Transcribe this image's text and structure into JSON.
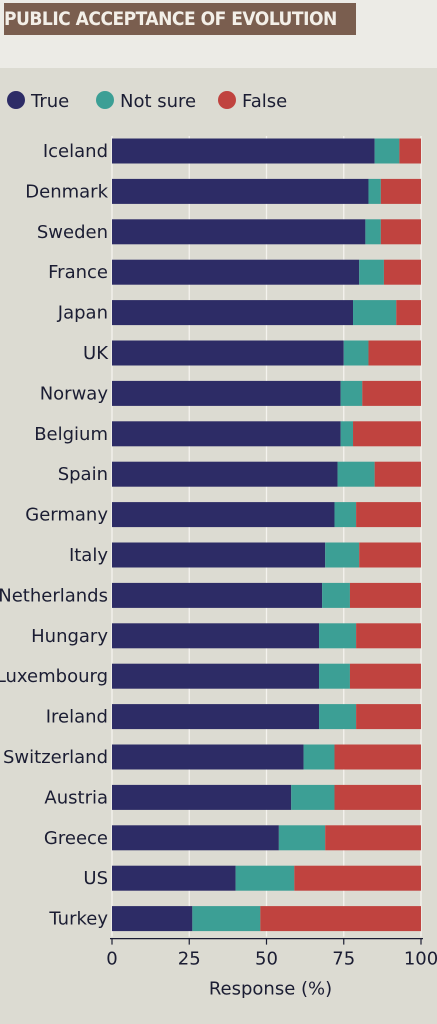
{
  "header": {
    "title": "PUBLIC ACCEPTANCE OF EVOLUTION"
  },
  "chart_data": {
    "type": "bar",
    "orientation": "horizontal",
    "stacked": true,
    "categories": [
      "Iceland",
      "Denmark",
      "Sweden",
      "France",
      "Japan",
      "UK",
      "Norway",
      "Belgium",
      "Spain",
      "Germany",
      "Italy",
      "Netherlands",
      "Hungary",
      "Luxembourg",
      "Ireland",
      "Switzerland",
      "Austria",
      "Greece",
      "US",
      "Turkey"
    ],
    "series": [
      {
        "name": "True",
        "color": "#2d2c66",
        "values": [
          85,
          83,
          82,
          80,
          78,
          75,
          74,
          74,
          73,
          72,
          69,
          68,
          67,
          67,
          67,
          62,
          58,
          54,
          40,
          26
        ]
      },
      {
        "name": "Not sure",
        "color": "#3c9f95",
        "values": [
          8,
          4,
          5,
          8,
          14,
          8,
          7,
          4,
          12,
          7,
          11,
          9,
          12,
          10,
          12,
          10,
          14,
          15,
          19,
          22
        ]
      },
      {
        "name": "False",
        "color": "#c0433f",
        "values": [
          7,
          13,
          13,
          12,
          8,
          17,
          19,
          22,
          15,
          21,
          20,
          23,
          21,
          23,
          21,
          28,
          28,
          31,
          41,
          52
        ]
      }
    ],
    "xlabel": "Response (%)",
    "xlim": [
      0,
      100
    ],
    "xticks": [
      0,
      25,
      50,
      75,
      100
    ],
    "legend_position": "top-left",
    "grid": true
  }
}
